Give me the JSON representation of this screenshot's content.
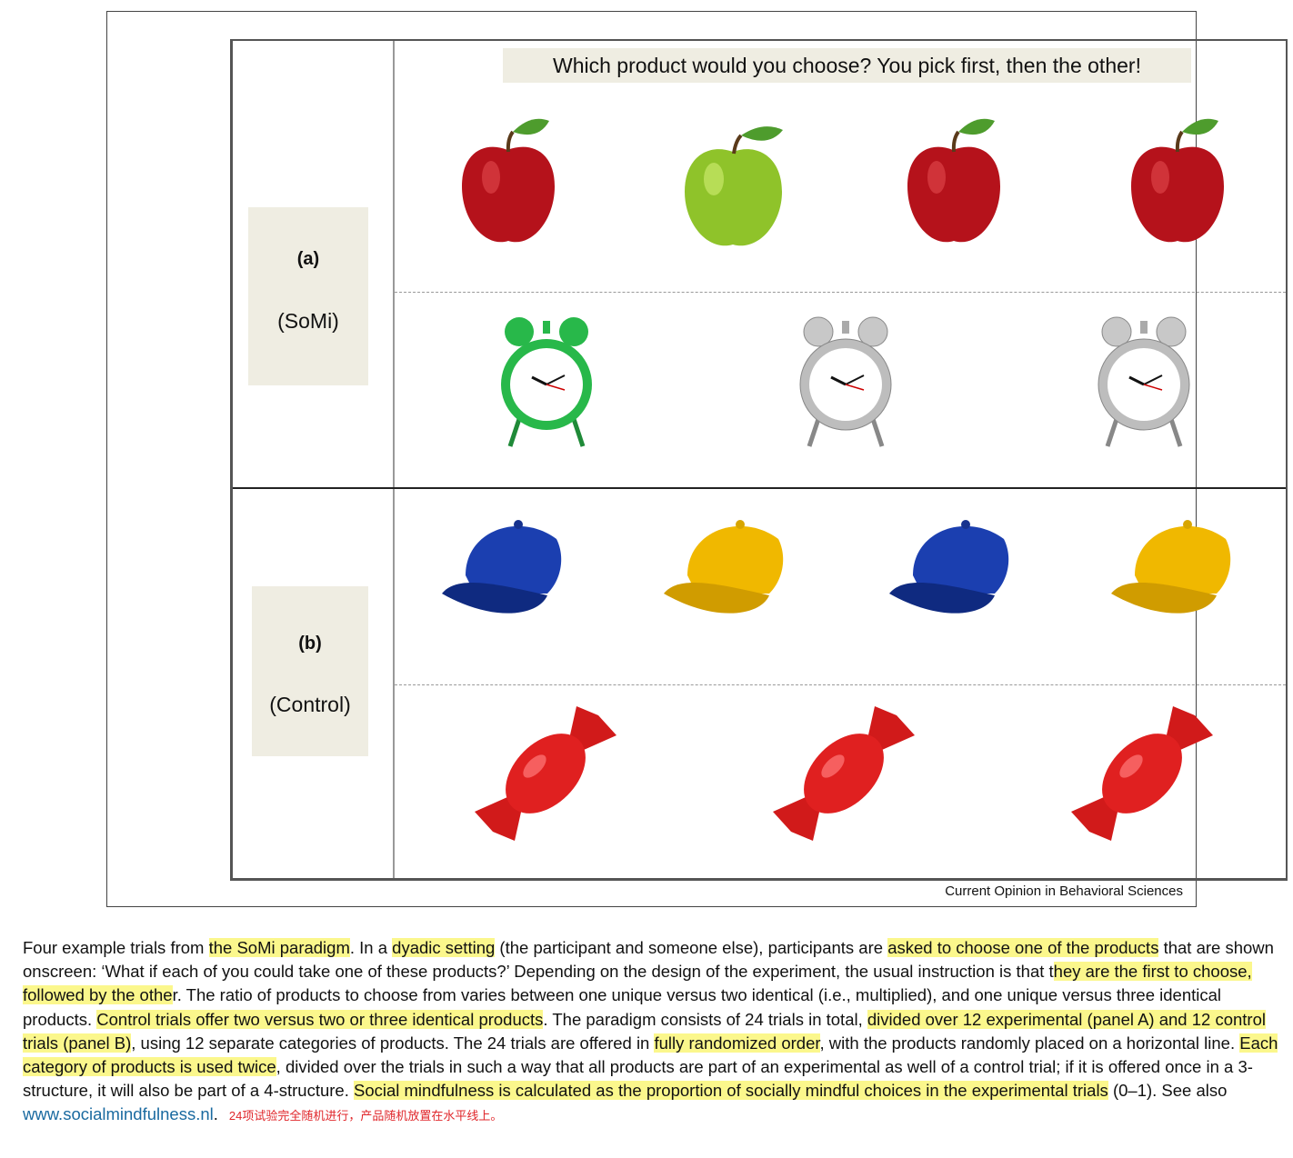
{
  "figure": {
    "question": "Which product would you choose? You pick first, then the other!",
    "panel_a": {
      "letter": "(a)",
      "name": "(SoMi)"
    },
    "panel_b": {
      "letter": "(b)",
      "name": "(Control)"
    },
    "credit": "Current Opinion in Behavioral Sciences",
    "rows": [
      {
        "items": [
          "red-apple",
          "green-apple",
          "red-apple",
          "red-apple"
        ]
      },
      {
        "items": [
          "green-alarm-clock",
          "silver-alarm-clock",
          "silver-alarm-clock"
        ]
      },
      {
        "items": [
          "blue-cap",
          "yellow-cap",
          "blue-cap",
          "yellow-cap"
        ]
      },
      {
        "items": [
          "red-candy",
          "red-candy",
          "red-candy"
        ]
      }
    ]
  },
  "caption": {
    "segments": [
      {
        "text": "Four example trials from ",
        "hl": false
      },
      {
        "text": "the SoMi paradigm",
        "hl": true
      },
      {
        "text": ". In a ",
        "hl": false
      },
      {
        "text": "dyadic setting",
        "hl": true
      },
      {
        "text": " (the participant and someone else), participants are ",
        "hl": false
      },
      {
        "text": "asked to choose one of the products",
        "hl": true
      },
      {
        "text": " that are shown onscreen: ‘What if each of you could take one of these products?’ Depending on the design of the experiment, the usual instruction is that t",
        "hl": false
      },
      {
        "text": "hey are the first to choose, followed by the othe",
        "hl": true
      },
      {
        "text": "r. The ratio of products to choose from varies between one unique versus two identical (i.e., multiplied), and one unique versus three identical products. ",
        "hl": false
      },
      {
        "text": "Control trials offer two versus two or three identical products",
        "hl": true
      },
      {
        "text": ". The paradigm consists of 24 trials in total, ",
        "hl": false
      },
      {
        "text": "divided over 12 experimental (panel A) and 12 control trials (panel B)",
        "hl": true
      },
      {
        "text": ", using 12 separate categories of products. The 24 trials are offered in ",
        "hl": false
      },
      {
        "text": "fully randomized order",
        "hl": true
      },
      {
        "text": ", with the products randomly placed on a horizontal line. ",
        "hl": false
      },
      {
        "text": "Each category of products is used twice",
        "hl": true
      },
      {
        "text": ", divided over the trials in such a way that all products are part of an experimental as well of a control trial; if it is offered once in a 3-structure, it will also be part of a 4-structure. ",
        "hl": false
      },
      {
        "text": "Social mindfulness is calculated as the proportion of socially mindful choices in the experimental trials",
        "hl": true
      },
      {
        "text": " (0–1). See also ",
        "hl": false
      }
    ],
    "link": "www.socialmindfulness.nl",
    "after_link": ".",
    "note": "24项试验完全随机进行，产品随机放置在水平线上。"
  }
}
